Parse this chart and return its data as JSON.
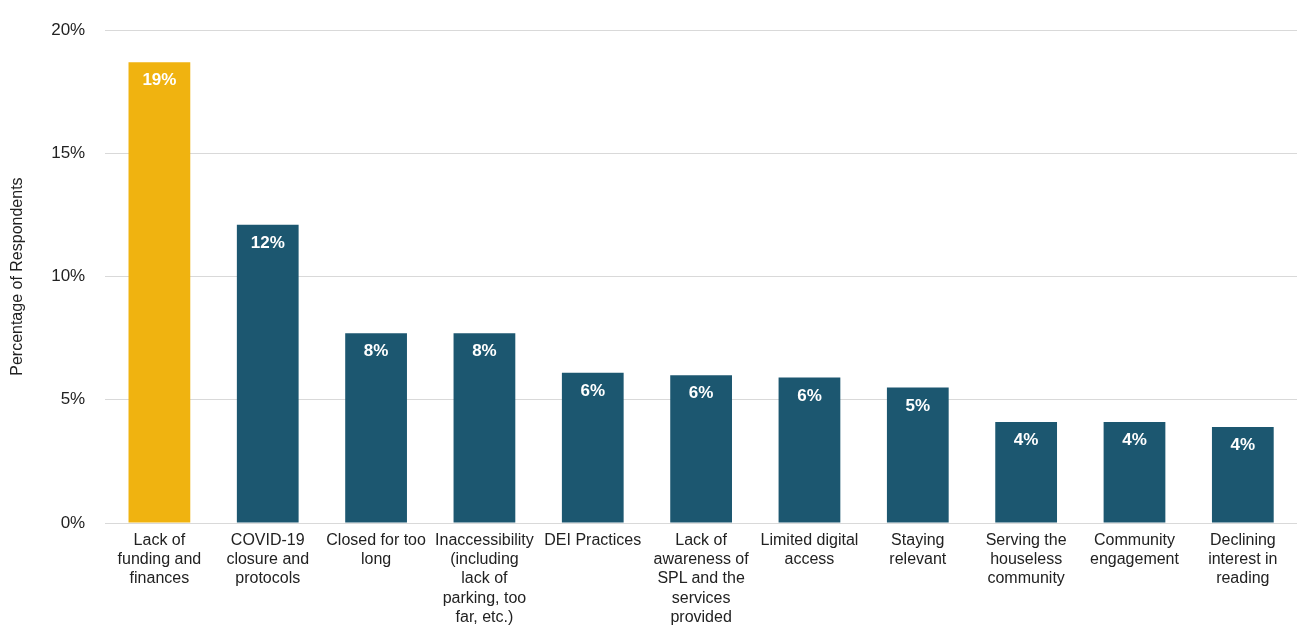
{
  "chart_data": {
    "type": "bar",
    "ylabel": "Percentage of Respondents",
    "categories": [
      "Lack of funding and finances",
      "COVID-19 closure and protocols",
      "Closed for too long",
      "Inaccessibility (including lack of parking, too far, etc.)",
      "DEI Practices",
      "Lack of awareness of SPL and the services provided",
      "Limited digital access",
      "Staying relevant",
      "Serving the houseless community",
      "Community engagement",
      "Declining interest in reading"
    ],
    "values": [
      18.7,
      12.1,
      7.7,
      7.7,
      6.1,
      6.0,
      5.9,
      5.5,
      4.1,
      4.1,
      3.9
    ],
    "colors": [
      "#f0b310",
      "#1c5770",
      "#1c5770",
      "#1c5770",
      "#1c5770",
      "#1c5770",
      "#1c5770",
      "#1c5770",
      "#1c5770",
      "#1c5770",
      "#1c5770"
    ],
    "value_labels": [
      "19%",
      "12%",
      "8%",
      "8%",
      "6%",
      "6%",
      "6%",
      "5%",
      "4%",
      "4%",
      "4%"
    ],
    "ylim": [
      0,
      20
    ],
    "yticks": [
      {
        "value": 0,
        "label": "0%"
      },
      {
        "value": 5,
        "label": "5%"
      },
      {
        "value": 10,
        "label": "10%"
      },
      {
        "value": 15,
        "label": "15%"
      },
      {
        "value": 20,
        "label": "20%"
      }
    ],
    "grid": "y",
    "legend": false
  }
}
